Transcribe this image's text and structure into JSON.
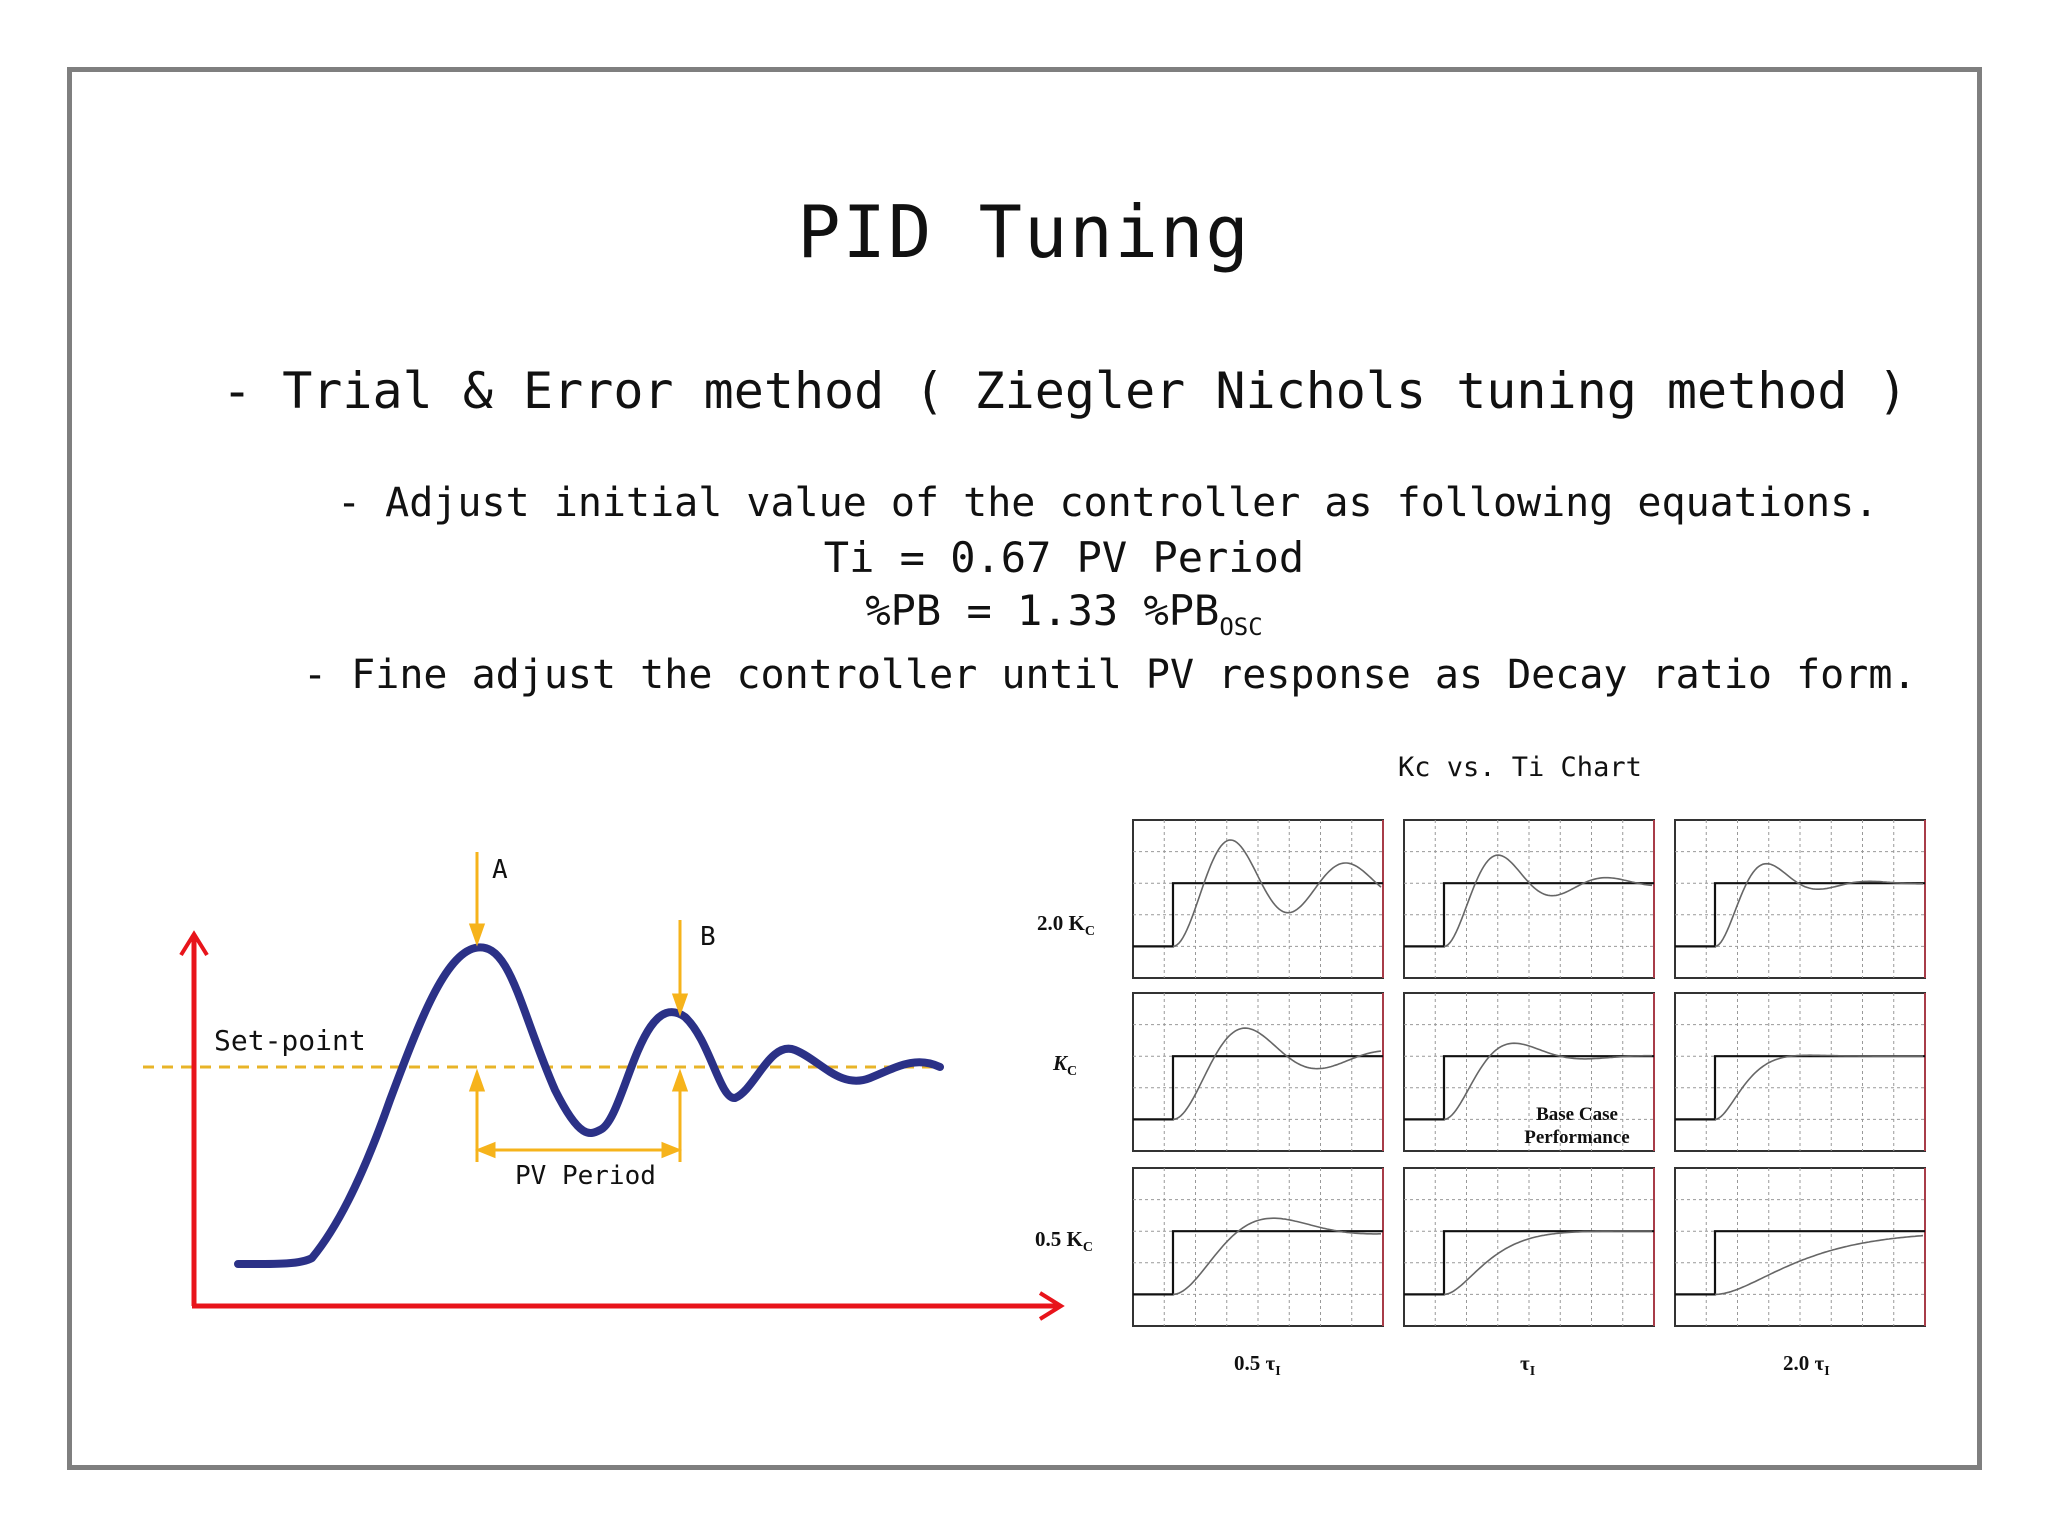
{
  "slide": {
    "title": "PID Tuning",
    "bullet_main": "- Trial & Error method ( Ziegler Nichols tuning method )",
    "bullet_adjust": "- Adjust initial value of the controller as following equations.",
    "eq_ti": "Ti = 0.67 PV Period",
    "eq_pb_main": "%PB = 1.33 %PB",
    "eq_pb_sub": "OSC",
    "bullet_fine": "- Fine adjust the controller until PV response as Decay ratio form."
  },
  "left_diagram": {
    "label_a": "A",
    "label_b": "B",
    "setpoint_label": "Set-point",
    "period_label": "PV Period",
    "colors": {
      "axes": "#e8141b",
      "curve": "#2b3187",
      "markers": "#f6b31b",
      "setpoint": "#e8b428"
    }
  },
  "right_chart": {
    "title": "Kc vs. Ti Chart",
    "row_labels": [
      {
        "main": "2.0 K",
        "sub": "C"
      },
      {
        "main": "K",
        "sub": "C"
      },
      {
        "main": "0.5 K",
        "sub": "C"
      }
    ],
    "col_labels": [
      {
        "main": "0.5 τ",
        "sub": "I"
      },
      {
        "main": "τ",
        "sub": "I"
      },
      {
        "main": "2.0 τ",
        "sub": "I"
      }
    ],
    "base_case_line1": "Base Case",
    "base_case_line2": "Performance"
  }
}
